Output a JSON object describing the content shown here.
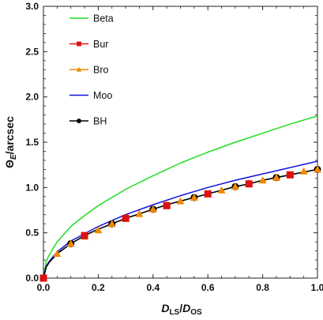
{
  "chart_data": {
    "type": "line",
    "ylabel_main": "Θ",
    "ylabel_sub": "E",
    "ylabel_tail": "/arcsec",
    "xlabel_main": "D",
    "xlabel_sub": "LS",
    "xlabel_mid": "/",
    "xlabel_main2": "D",
    "xlabel_sub2": "OS",
    "xlim": [
      0,
      1
    ],
    "ylim": [
      0,
      3
    ],
    "x_ticks": [
      "0.0",
      "0.2",
      "0.4",
      "0.6",
      "0.8",
      "1.0"
    ],
    "y_ticks": [
      "0.0",
      "0.5",
      "1.0",
      "1.5",
      "2.0",
      "2.5",
      "3.0"
    ],
    "legend_position": "top-left",
    "series": [
      {
        "name": "Beta",
        "color": "#22dd22",
        "marker": "none",
        "x": [
          0,
          0.01,
          0.02,
          0.05,
          0.1,
          0.15,
          0.2,
          0.3,
          0.4,
          0.5,
          0.6,
          0.7,
          0.8,
          0.9,
          1.0
        ],
        "y": [
          0,
          0.18,
          0.25,
          0.4,
          0.57,
          0.69,
          0.8,
          0.98,
          1.13,
          1.27,
          1.39,
          1.5,
          1.6,
          1.7,
          1.79
        ]
      },
      {
        "name": "Bur",
        "color": "#dd1111",
        "marker": "square",
        "x": [
          0,
          0.15,
          0.3,
          0.45,
          0.6,
          0.75,
          0.9
        ],
        "y": [
          0,
          0.47,
          0.66,
          0.8,
          0.93,
          1.04,
          1.14
        ]
      },
      {
        "name": "Bro",
        "color": "#ee8800",
        "marker": "triangle",
        "x": [
          0.05,
          0.1,
          0.15,
          0.2,
          0.25,
          0.3,
          0.35,
          0.4,
          0.45,
          0.5,
          0.55,
          0.6,
          0.65,
          0.7,
          0.75,
          0.8,
          0.85,
          0.9,
          0.95,
          1.0
        ],
        "y": [
          0.27,
          0.38,
          0.46,
          0.53,
          0.6,
          0.66,
          0.71,
          0.76,
          0.81,
          0.85,
          0.89,
          0.93,
          0.97,
          1.01,
          1.05,
          1.08,
          1.11,
          1.14,
          1.18,
          1.2
        ]
      },
      {
        "name": "Moo",
        "color": "#1111dd",
        "marker": "none",
        "x": [
          0,
          0.01,
          0.02,
          0.05,
          0.1,
          0.2,
          0.3,
          0.4,
          0.5,
          0.6,
          0.7,
          0.8,
          0.9,
          1.0
        ],
        "y": [
          0,
          0.13,
          0.18,
          0.29,
          0.41,
          0.57,
          0.7,
          0.81,
          0.91,
          1.0,
          1.08,
          1.15,
          1.22,
          1.29
        ]
      },
      {
        "name": "BH",
        "color": "#000000",
        "marker": "circle",
        "x": [
          0,
          0.01,
          0.02,
          0.05,
          0.1,
          0.15,
          0.2,
          0.25,
          0.3,
          0.35,
          0.4,
          0.45,
          0.5,
          0.55,
          0.6,
          0.65,
          0.7,
          0.75,
          0.8,
          0.85,
          0.9,
          0.95,
          1.0
        ],
        "y": [
          0,
          0.12,
          0.17,
          0.27,
          0.38,
          0.47,
          0.54,
          0.6,
          0.66,
          0.71,
          0.76,
          0.81,
          0.85,
          0.89,
          0.93,
          0.97,
          1.01,
          1.04,
          1.08,
          1.11,
          1.14,
          1.17,
          1.2
        ],
        "marker_x": [
          0,
          0.1,
          0.25,
          0.4,
          0.55,
          0.7,
          0.85,
          1.0
        ]
      }
    ]
  }
}
